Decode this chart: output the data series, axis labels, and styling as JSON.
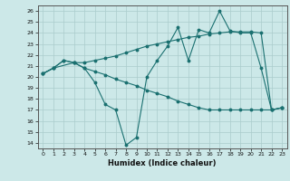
{
  "xlabel": "Humidex (Indice chaleur)",
  "bg_color": "#cce8e8",
  "grid_color": "#aacccc",
  "line_color": "#1a7070",
  "xlim": [
    -0.5,
    23.5
  ],
  "ylim": [
    13.5,
    26.5
  ],
  "xticks": [
    0,
    1,
    2,
    3,
    4,
    5,
    6,
    7,
    8,
    9,
    10,
    11,
    12,
    13,
    14,
    15,
    16,
    17,
    18,
    19,
    20,
    21,
    22,
    23
  ],
  "yticks": [
    14,
    15,
    16,
    17,
    18,
    19,
    20,
    21,
    22,
    23,
    24,
    25,
    26
  ],
  "series1_x": [
    0,
    1,
    2,
    3,
    4,
    5,
    6,
    7,
    8,
    9,
    10,
    11,
    12,
    13,
    14,
    15,
    16,
    17,
    18,
    19,
    20,
    21,
    22,
    23
  ],
  "series1_y": [
    20.3,
    20.8,
    21.5,
    21.3,
    20.8,
    19.5,
    17.5,
    17.0,
    13.8,
    14.5,
    20.0,
    21.5,
    22.8,
    24.5,
    21.5,
    24.3,
    24.0,
    26.0,
    24.2,
    24.0,
    24.0,
    20.8,
    17.0,
    17.2
  ],
  "series2_x": [
    0,
    1,
    3,
    4,
    5,
    6,
    7,
    8,
    9,
    10,
    11,
    12,
    13,
    14,
    15,
    16,
    17,
    18,
    19,
    20,
    21,
    22,
    23
  ],
  "series2_y": [
    20.3,
    20.8,
    21.3,
    21.3,
    21.5,
    21.7,
    21.9,
    22.2,
    22.5,
    22.8,
    23.0,
    23.2,
    23.4,
    23.6,
    23.7,
    23.9,
    24.0,
    24.1,
    24.1,
    24.1,
    24.0,
    17.0,
    17.2
  ],
  "series3_x": [
    0,
    1,
    2,
    3,
    4,
    5,
    6,
    7,
    8,
    9,
    10,
    11,
    12,
    13,
    14,
    15,
    16,
    17,
    18,
    19,
    20,
    21,
    22,
    23
  ],
  "series3_y": [
    20.3,
    20.8,
    21.5,
    21.3,
    20.8,
    20.5,
    20.2,
    19.8,
    19.5,
    19.2,
    18.8,
    18.5,
    18.2,
    17.8,
    17.5,
    17.2,
    17.0,
    17.0,
    17.0,
    17.0,
    17.0,
    17.0,
    17.0,
    17.2
  ]
}
